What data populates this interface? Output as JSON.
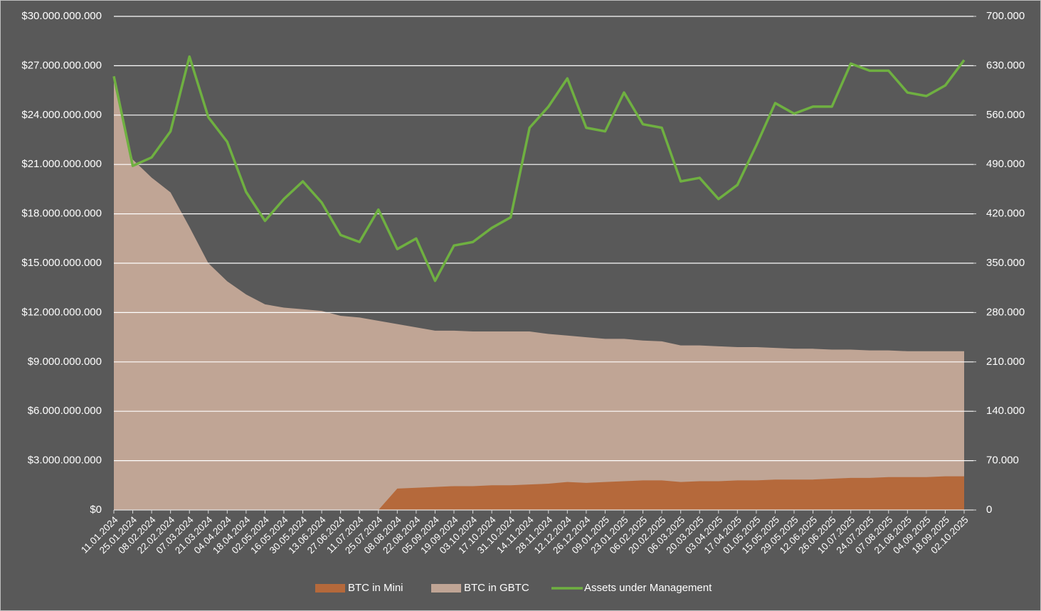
{
  "chart_data": {
    "type": "area-line",
    "categories": [
      "11.01.2024",
      "25.01.2024",
      "08.02.2024",
      "22.02.2024",
      "07.03.2024",
      "21.03.2024",
      "04.04.2024",
      "18.04.2024",
      "02.05.2024",
      "16.05.2024",
      "30.05.2024",
      "13.06.2024",
      "27.06.2024",
      "11.07.2024",
      "25.07.2024",
      "08.08.2024",
      "22.08.2024",
      "05.09.2024",
      "19.09.2024",
      "03.10.2024",
      "17.10.2024",
      "31.10.2024",
      "14.11.2024",
      "28.11.2024",
      "12.12.2024",
      "26.12.2024",
      "09.01.2025",
      "23.01.2025",
      "06.02.2025",
      "20.02.2025",
      "06.03.2025",
      "20.03.2025",
      "03.04.2025",
      "17.04.2025",
      "01.05.2025",
      "15.05.2025",
      "29.05.2025",
      "12.06.2025",
      "26.06.2025",
      "10.07.2025",
      "24.07.2025",
      "07.08.2025",
      "21.08.2025",
      "04.09.2025",
      "18.09.2025",
      "02.10.2025"
    ],
    "series": [
      {
        "name": "BTC in Mini",
        "type": "area",
        "color": "#b5693b",
        "values": [
          0,
          0,
          0,
          0,
          0,
          0,
          0,
          0,
          0,
          0,
          0,
          0,
          0,
          0,
          0,
          1300000000,
          1350000000,
          1400000000,
          1450000000,
          1450000000,
          1500000000,
          1500000000,
          1550000000,
          1600000000,
          1700000000,
          1650000000,
          1700000000,
          1750000000,
          1800000000,
          1800000000,
          1700000000,
          1750000000,
          1750000000,
          1800000000,
          1800000000,
          1850000000,
          1850000000,
          1850000000,
          1900000000,
          1950000000,
          1950000000,
          2000000000,
          2000000000,
          2000000000,
          2050000000,
          2050000000
        ]
      },
      {
        "name": "BTC in GBTC",
        "type": "area",
        "color": "#c0a595",
        "values": [
          26000000000,
          21300000000,
          20200000000,
          19300000000,
          17200000000,
          15000000000,
          13900000000,
          13100000000,
          12500000000,
          12300000000,
          12200000000,
          12100000000,
          11800000000,
          11700000000,
          11500000000,
          11300000000,
          11100000000,
          10900000000,
          10900000000,
          10850000000,
          10850000000,
          10850000000,
          10850000000,
          10700000000,
          10600000000,
          10500000000,
          10400000000,
          10400000000,
          10300000000,
          10250000000,
          10000000000,
          10000000000,
          9950000000,
          9900000000,
          9900000000,
          9850000000,
          9800000000,
          9800000000,
          9750000000,
          9750000000,
          9700000000,
          9700000000,
          9650000000,
          9650000000,
          9650000000,
          9650000000
        ]
      },
      {
        "name": "Assets under Management",
        "type": "line",
        "axis": "y2",
        "color": "#6fb041",
        "values": [
          615000,
          488000,
          500000,
          537000,
          643000,
          557000,
          522000,
          451000,
          410000,
          441000,
          466000,
          436000,
          390000,
          380000,
          426000,
          370000,
          385000,
          325000,
          375000,
          380000,
          400000,
          415000,
          542000,
          572000,
          612000,
          542000,
          537000,
          592000,
          547000,
          542000,
          466000,
          471000,
          441000,
          461000,
          517000,
          577000,
          562000,
          572000,
          572000,
          633000,
          623000,
          623000,
          592000,
          587000,
          602000,
          638000
        ]
      }
    ],
    "ylim": [
      0,
      30000000000
    ],
    "yticks": [
      {
        "value": 0,
        "label": "$0"
      },
      {
        "value": 3000000000,
        "label": "$3.000.000.000"
      },
      {
        "value": 6000000000,
        "label": "$6.000.000.000"
      },
      {
        "value": 9000000000,
        "label": "$9.000.000.000"
      },
      {
        "value": 12000000000,
        "label": "$12.000.000.000"
      },
      {
        "value": 15000000000,
        "label": "$15.000.000.000"
      },
      {
        "value": 18000000000,
        "label": "$18.000.000.000"
      },
      {
        "value": 21000000000,
        "label": "$21.000.000.000"
      },
      {
        "value": 24000000000,
        "label": "$24.000.000.000"
      },
      {
        "value": 27000000000,
        "label": "$27.000.000.000"
      },
      {
        "value": 30000000000,
        "label": "$30.000.000.000"
      }
    ],
    "y2lim": [
      0,
      700000
    ],
    "y2ticks": [
      0,
      {
        "value": 70000,
        "label": "70.000"
      },
      {
        "value": 140000,
        "label": "140.000"
      },
      {
        "value": 210000,
        "label": "210.000"
      },
      {
        "value": 280000,
        "label": "280.000"
      },
      {
        "value": 350000,
        "label": "350.000"
      },
      {
        "value": 420000,
        "label": "420.000"
      },
      {
        "value": 490000,
        "label": "490.000"
      },
      {
        "value": 560000,
        "label": "560.000"
      },
      {
        "value": 630000,
        "label": "630.000"
      },
      {
        "value": 700000,
        "label": "700.000"
      }
    ],
    "grid": true,
    "legend": "bottom"
  }
}
